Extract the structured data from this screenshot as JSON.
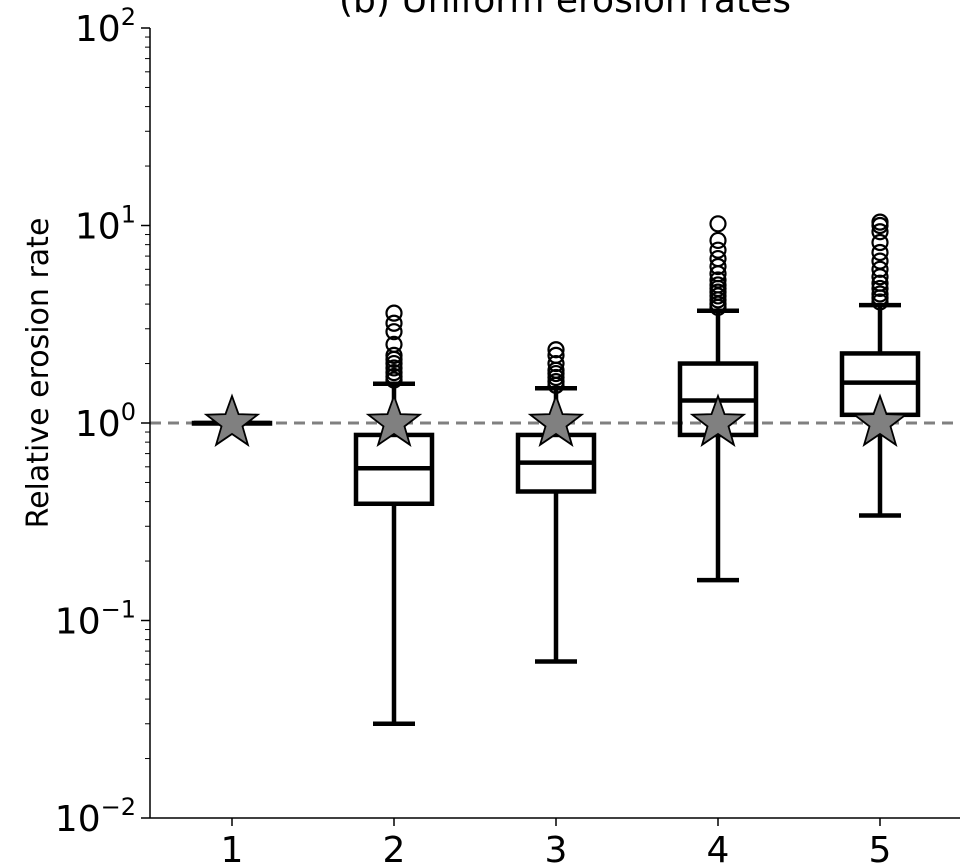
{
  "chart_data": {
    "type": "box",
    "title": "(b) Uniform erosion rates",
    "xlabel": "",
    "ylabel": "Relative erosion rate",
    "yscale": "log",
    "ylim": [
      0.01,
      100
    ],
    "y_ticks": [
      {
        "value": 0.01,
        "base": "10",
        "exp": "−2"
      },
      {
        "value": 0.1,
        "base": "10",
        "exp": "−1"
      },
      {
        "value": 1,
        "base": "10",
        "exp": "0"
      },
      {
        "value": 10,
        "base": "10",
        "exp": "1"
      },
      {
        "value": 100,
        "base": "10",
        "exp": "2"
      }
    ],
    "categories": [
      "1",
      "2",
      "3",
      "4",
      "5"
    ],
    "reference_line": {
      "y": 1,
      "style": "dashed",
      "color": "#808080"
    },
    "colors": {
      "box": "#000000",
      "star_fill": "#808080",
      "star_stroke": "#000000"
    },
    "boxes": [
      {
        "category": "1",
        "whisker_low": 1.0,
        "q1": 1.0,
        "median": 1.0,
        "q3": 1.0,
        "whisker_high": 1.0,
        "outliers": [],
        "star": 1.0
      },
      {
        "category": "2",
        "whisker_low": 0.03,
        "q1": 0.39,
        "median": 0.59,
        "q3": 0.87,
        "whisker_high": 1.58,
        "outliers": [
          1.65,
          1.72,
          1.8,
          1.9,
          2.0,
          2.1,
          2.2,
          2.5,
          2.9,
          3.2,
          3.6
        ],
        "star": 1.0
      },
      {
        "category": "3",
        "whisker_low": 0.062,
        "q1": 0.45,
        "median": 0.63,
        "q3": 0.87,
        "whisker_high": 1.5,
        "outliers": [
          1.55,
          1.62,
          1.7,
          1.78,
          1.85,
          2.0,
          2.2,
          2.35
        ],
        "star": 1.0
      },
      {
        "category": "4",
        "whisker_low": 0.16,
        "q1": 0.87,
        "median": 1.3,
        "q3": 2.0,
        "whisker_high": 3.7,
        "outliers": [
          3.85,
          4.0,
          4.2,
          4.4,
          4.6,
          4.8,
          5.0,
          5.3,
          5.7,
          6.2,
          6.8,
          7.5,
          8.4,
          10.2
        ],
        "star": 1.0
      },
      {
        "category": "5",
        "whisker_low": 0.34,
        "q1": 1.1,
        "median": 1.6,
        "q3": 2.25,
        "whisker_high": 3.95,
        "outliers": [
          4.1,
          4.3,
          4.5,
          4.8,
          5.1,
          5.5,
          6.0,
          6.6,
          7.3,
          8.2,
          9.3,
          10.0,
          10.4
        ],
        "star": 1.0
      }
    ]
  }
}
